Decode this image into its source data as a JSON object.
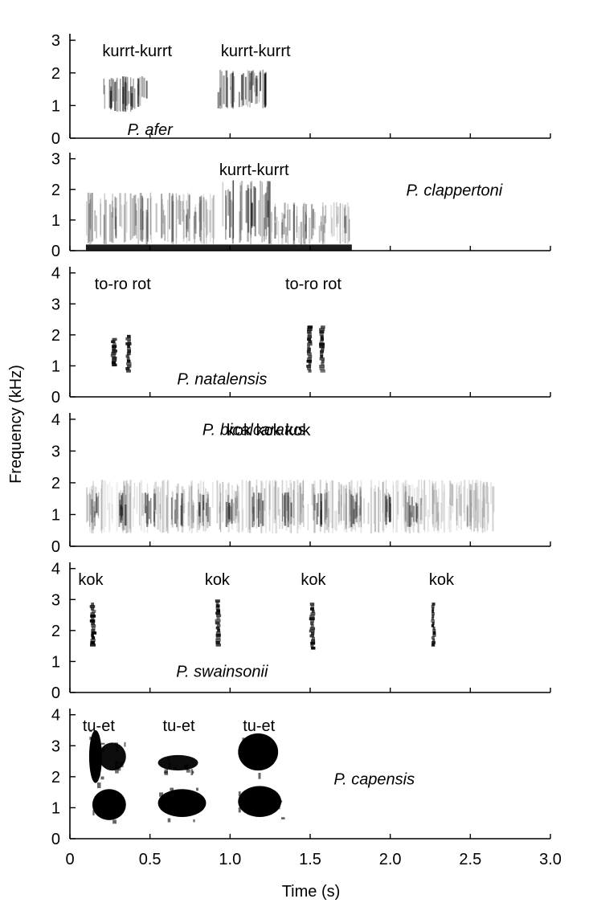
{
  "figure": {
    "ylabel": "Frequency (kHz)",
    "xlabel": "Time (s)"
  },
  "chart_data": {
    "type": "spectrogram",
    "xlim": [
      0,
      3.0
    ],
    "x_ticks": [
      "0",
      "0.5",
      "1.0",
      "1.5",
      "2.0",
      "2.5",
      "3.0"
    ],
    "x_tick_values": [
      0,
      0.5,
      1.0,
      1.5,
      2.0,
      2.5,
      3.0
    ],
    "xlabel": "Time (s)",
    "ylabel": "Frequency (kHz)",
    "panels": [
      {
        "species": "P. afer",
        "ylim": [
          0,
          3.2
        ],
        "y_ticks": [
          0,
          1,
          2,
          3
        ],
        "call_labels": [
          {
            "text": "kurrt-kurrt",
            "t": 0.42
          },
          {
            "text": "kurrt-kurrt",
            "t": 1.16
          }
        ],
        "energy": [
          {
            "t0": 0.18,
            "t1": 0.48,
            "f0": 0.8,
            "f1": 1.9,
            "d": 0.75,
            "style": "noise"
          },
          {
            "t0": 0.92,
            "t1": 1.22,
            "f0": 0.9,
            "f1": 2.1,
            "d": 0.8,
            "style": "noise"
          }
        ]
      },
      {
        "species": "P. clappertoni",
        "ylim": [
          0,
          3.2
        ],
        "y_ticks": [
          0,
          1,
          2,
          3
        ],
        "call_labels": [
          {
            "text": "kurrt-kurrt",
            "t": 1.15
          }
        ],
        "energy": [
          {
            "t0": 0.1,
            "t1": 1.76,
            "f0": 0.0,
            "f1": 0.2,
            "d": 0.95,
            "style": "band"
          },
          {
            "t0": 0.1,
            "t1": 0.9,
            "f0": 0.2,
            "f1": 1.9,
            "d": 0.45,
            "style": "noise"
          },
          {
            "t0": 0.95,
            "t1": 1.25,
            "f0": 0.2,
            "f1": 2.3,
            "d": 0.7,
            "style": "noise"
          },
          {
            "t0": 1.25,
            "t1": 1.75,
            "f0": 0.2,
            "f1": 1.6,
            "d": 0.45,
            "style": "noise"
          }
        ]
      },
      {
        "species": "P. natalensis",
        "ylim": [
          0,
          4.2
        ],
        "y_ticks": [
          0,
          1,
          2,
          3,
          4
        ],
        "call_labels": [
          {
            "text": "to-ro rot",
            "t": 0.33
          },
          {
            "text": "to-ro rot",
            "t": 1.52
          }
        ],
        "energy": [
          {
            "t0": 0.26,
            "t1": 0.29,
            "f0": 1.0,
            "f1": 1.9,
            "d": 1.0,
            "style": "pulse"
          },
          {
            "t0": 0.35,
            "t1": 0.38,
            "f0": 0.8,
            "f1": 2.0,
            "d": 1.0,
            "style": "pulse"
          },
          {
            "t0": 1.48,
            "t1": 1.51,
            "f0": 0.8,
            "f1": 2.3,
            "d": 0.95,
            "style": "pulse"
          },
          {
            "t0": 1.56,
            "t1": 1.59,
            "f0": 0.8,
            "f1": 2.3,
            "d": 0.95,
            "style": "pulse"
          }
        ]
      },
      {
        "species": "P. bicalcaratus",
        "ylim": [
          0,
          4.2
        ],
        "y_ticks": [
          0,
          1,
          2,
          3,
          4
        ],
        "call_labels": [
          {
            "text": "kok kok kok",
            "t": 1.24
          }
        ],
        "energy": [
          {
            "t0": 0.1,
            "t1": 2.65,
            "f0": 0.4,
            "f1": 2.1,
            "d": 0.25,
            "style": "noise"
          },
          {
            "t0": 0.11,
            "t1": 0.18,
            "f0": 0.6,
            "f1": 1.7,
            "d": 0.7,
            "style": "noise"
          },
          {
            "t0": 0.29,
            "t1": 0.36,
            "f0": 0.6,
            "f1": 1.7,
            "d": 0.7,
            "style": "noise"
          },
          {
            "t0": 0.46,
            "t1": 0.53,
            "f0": 0.6,
            "f1": 1.7,
            "d": 0.7,
            "style": "noise"
          },
          {
            "t0": 0.63,
            "t1": 0.7,
            "f0": 0.6,
            "f1": 1.7,
            "d": 0.7,
            "style": "noise"
          },
          {
            "t0": 0.8,
            "t1": 0.87,
            "f0": 0.6,
            "f1": 1.7,
            "d": 0.7,
            "style": "noise"
          },
          {
            "t0": 0.96,
            "t1": 1.03,
            "f0": 0.6,
            "f1": 1.7,
            "d": 0.7,
            "style": "noise"
          },
          {
            "t0": 1.13,
            "t1": 1.2,
            "f0": 0.6,
            "f1": 1.7,
            "d": 0.7,
            "style": "noise"
          },
          {
            "t0": 1.32,
            "t1": 1.39,
            "f0": 0.6,
            "f1": 1.7,
            "d": 0.7,
            "style": "noise"
          },
          {
            "t0": 1.5,
            "t1": 1.57,
            "f0": 0.6,
            "f1": 1.7,
            "d": 0.7,
            "style": "noise"
          },
          {
            "t0": 1.75,
            "t1": 1.82,
            "f0": 0.6,
            "f1": 1.7,
            "d": 0.7,
            "style": "noise"
          },
          {
            "t0": 1.93,
            "t1": 2.0,
            "f0": 0.6,
            "f1": 1.7,
            "d": 0.7,
            "style": "noise"
          },
          {
            "t0": 2.1,
            "t1": 2.17,
            "f0": 0.6,
            "f1": 1.6,
            "d": 0.6,
            "style": "noise"
          }
        ]
      },
      {
        "species": "P. swainsonii",
        "ylim": [
          0,
          4.2
        ],
        "y_ticks": [
          0,
          1,
          2,
          3,
          4
        ],
        "call_labels": [
          {
            "text": "kok",
            "t": 0.13
          },
          {
            "text": "kok",
            "t": 0.92
          },
          {
            "text": "kok",
            "t": 1.52
          },
          {
            "text": "kok",
            "t": 2.32
          }
        ],
        "energy": [
          {
            "t0": 0.13,
            "t1": 0.16,
            "f0": 1.5,
            "f1": 2.9,
            "d": 1.0,
            "style": "pulse"
          },
          {
            "t0": 0.91,
            "t1": 0.94,
            "f0": 1.5,
            "f1": 3.0,
            "d": 1.0,
            "style": "pulse"
          },
          {
            "t0": 1.5,
            "t1": 1.53,
            "f0": 1.4,
            "f1": 2.9,
            "d": 1.0,
            "style": "pulse"
          },
          {
            "t0": 2.26,
            "t1": 2.28,
            "f0": 1.5,
            "f1": 2.9,
            "d": 1.0,
            "style": "pulse"
          }
        ]
      },
      {
        "species": "P. capensis",
        "ylim": [
          0,
          4.2
        ],
        "y_ticks": [
          0,
          1,
          2,
          3,
          4
        ],
        "call_labels": [
          {
            "text": "tu-et",
            "t": 0.18
          },
          {
            "text": "tu-et",
            "t": 0.68
          },
          {
            "text": "tu-et",
            "t": 1.18
          }
        ],
        "energy": [
          {
            "t0": 0.12,
            "t1": 0.2,
            "f0": 1.8,
            "f1": 3.5,
            "d": 1.0,
            "style": "solid"
          },
          {
            "t0": 0.18,
            "t1": 0.35,
            "f0": 2.2,
            "f1": 3.1,
            "d": 0.95,
            "style": "solid"
          },
          {
            "t0": 0.14,
            "t1": 0.35,
            "f0": 0.6,
            "f1": 1.6,
            "d": 1.0,
            "style": "solid"
          },
          {
            "t0": 0.55,
            "t1": 0.8,
            "f0": 2.2,
            "f1": 2.7,
            "d": 0.95,
            "style": "solid"
          },
          {
            "t0": 0.55,
            "t1": 0.85,
            "f0": 0.7,
            "f1": 1.6,
            "d": 1.0,
            "style": "solid"
          },
          {
            "t0": 1.05,
            "t1": 1.3,
            "f0": 2.2,
            "f1": 3.4,
            "d": 1.0,
            "style": "solid"
          },
          {
            "t0": 1.05,
            "t1": 1.32,
            "f0": 0.7,
            "f1": 1.7,
            "d": 1.0,
            "style": "solid"
          }
        ]
      }
    ]
  }
}
